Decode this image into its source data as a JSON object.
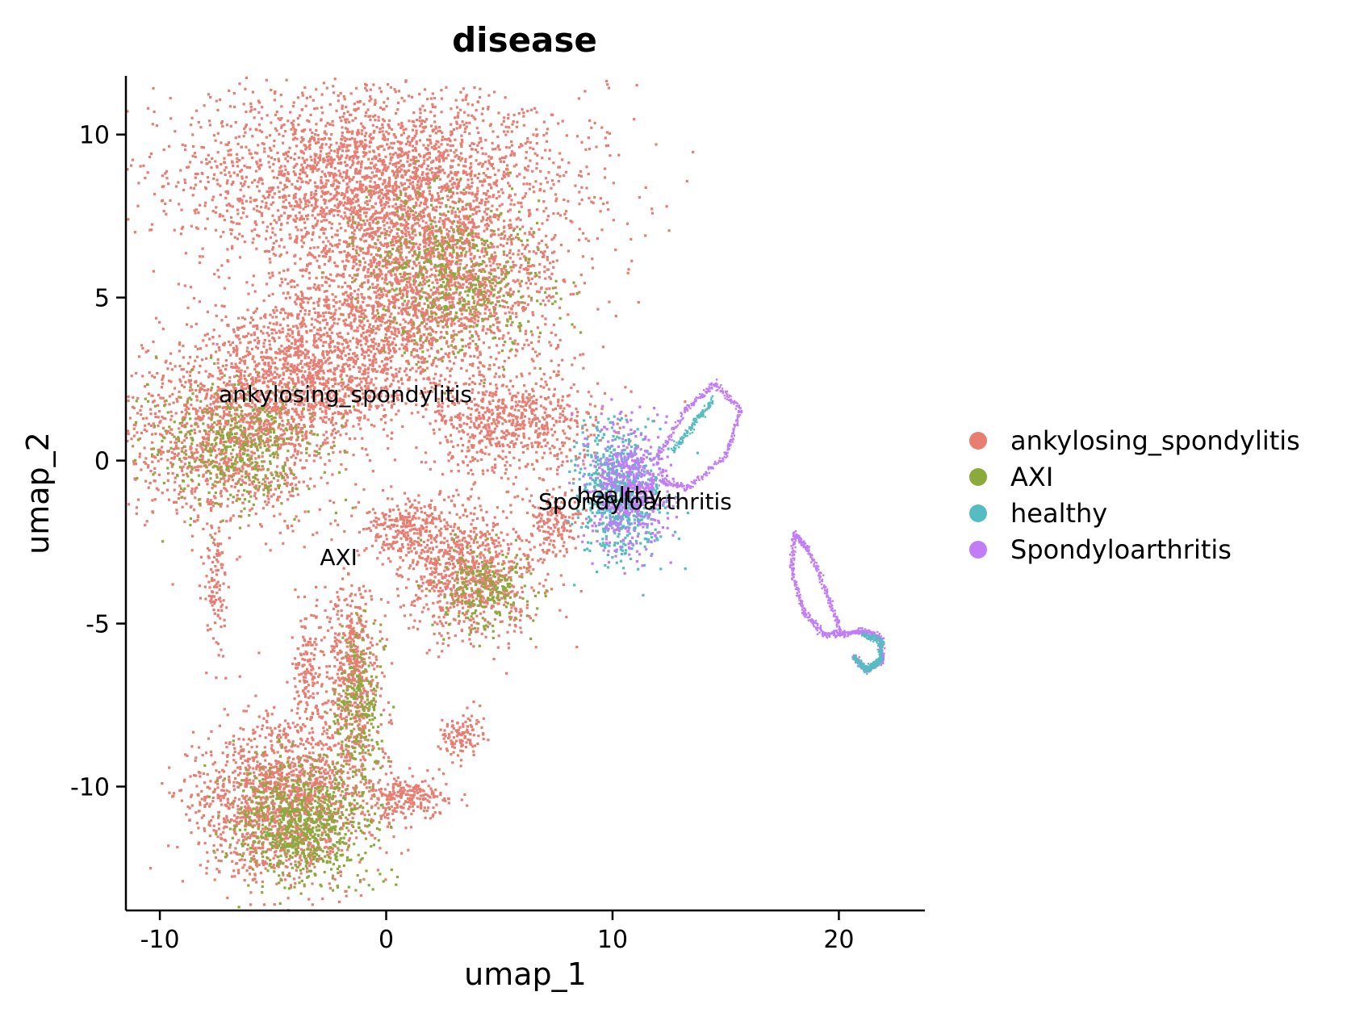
{
  "chart_data": {
    "type": "scatter",
    "title": "disease",
    "xlabel": "umap_1",
    "ylabel": "umap_2",
    "xlim": [
      -11.5,
      23.8
    ],
    "ylim": [
      -13.8,
      11.8
    ],
    "x_ticks": [
      -10,
      0,
      10,
      20
    ],
    "y_ticks": [
      -10,
      -5,
      0,
      5,
      10
    ],
    "grid": false,
    "legend_position": "right",
    "series": [
      {
        "name": "ankylosing_spondylitis",
        "color": "#E87D72"
      },
      {
        "name": "AXI",
        "color": "#8BAA3C"
      },
      {
        "name": "healthy",
        "color": "#55BCC2"
      },
      {
        "name": "Spondyloarthritis",
        "color": "#C37CF7"
      }
    ],
    "annotations": [
      {
        "text": "ankylosing_spondylitis",
        "x": -1.8,
        "y": 1.8
      },
      {
        "text": "AXI",
        "x": -2.1,
        "y": -3.2
      },
      {
        "text": "healthy",
        "x": 10.3,
        "y": -1.3
      },
      {
        "text": "Spondyloarthritis",
        "x": 11.0,
        "y": -1.5
      }
    ],
    "clusters": [
      {
        "series": 0,
        "cx": -0.8,
        "cy": 8.7,
        "sx": 4.2,
        "sy": 1.4,
        "n": 2600
      },
      {
        "series": 0,
        "cx": 2.5,
        "cy": 5.8,
        "sx": 2.6,
        "sy": 1.6,
        "n": 1700
      },
      {
        "series": 1,
        "cx": 2.8,
        "cy": 5.6,
        "sx": 2.0,
        "sy": 1.2,
        "n": 550
      },
      {
        "series": 0,
        "cx": -1.5,
        "cy": 4.0,
        "sx": 2.8,
        "sy": 1.2,
        "n": 1000
      },
      {
        "series": 0,
        "cx": -6.8,
        "cy": 1.0,
        "sx": 2.4,
        "sy": 1.4,
        "n": 1500
      },
      {
        "series": 1,
        "cx": -6.5,
        "cy": 0.4,
        "sx": 1.8,
        "sy": 1.0,
        "n": 450
      },
      {
        "series": 0,
        "cx": -3.5,
        "cy": 2.5,
        "sx": 1.8,
        "sy": 0.9,
        "n": 600
      },
      {
        "series": 0,
        "cx": 5.5,
        "cy": 1.2,
        "sx": 2.0,
        "sy": 0.8,
        "n": 700
      },
      {
        "series": 0,
        "cx": 3.6,
        "cy": -3.4,
        "sx": 1.5,
        "sy": 1.0,
        "n": 900
      },
      {
        "series": 1,
        "cx": 4.2,
        "cy": -3.9,
        "sx": 1.0,
        "sy": 0.6,
        "n": 220
      },
      {
        "series": 0,
        "cx": 0.6,
        "cy": -2.0,
        "sx": 0.9,
        "sy": 0.45,
        "n": 220
      },
      {
        "series": 0,
        "cx": -4.6,
        "cy": -10.4,
        "sx": 1.9,
        "sy": 1.2,
        "n": 1700
      },
      {
        "series": 1,
        "cx": -3.7,
        "cy": -11.1,
        "sx": 1.5,
        "sy": 0.9,
        "n": 750
      },
      {
        "series": 0,
        "cx": -1.5,
        "cy": -6.6,
        "sx": 0.55,
        "sy": 1.4,
        "n": 550
      },
      {
        "series": 1,
        "cx": -1.3,
        "cy": -7.6,
        "sx": 0.5,
        "sy": 1.2,
        "n": 230
      },
      {
        "series": 0,
        "cx": -3.5,
        "cy": -6.4,
        "sx": 0.35,
        "sy": 0.9,
        "n": 150
      },
      {
        "series": 0,
        "cx": 0.9,
        "cy": -10.3,
        "sx": 1.0,
        "sy": 0.35,
        "n": 220
      },
      {
        "series": 0,
        "cx": 3.3,
        "cy": -8.4,
        "sx": 0.5,
        "sy": 0.35,
        "n": 110
      },
      {
        "series": 0,
        "cx": -7.6,
        "cy": -3.8,
        "sx": 0.25,
        "sy": 1.0,
        "n": 110
      },
      {
        "series": 0,
        "cx": 7.4,
        "cy": -1.8,
        "sx": 0.6,
        "sy": 0.5,
        "n": 160
      },
      {
        "series": 2,
        "cx": 10.3,
        "cy": -1.0,
        "sx": 0.9,
        "sy": 1.0,
        "n": 650
      },
      {
        "series": 3,
        "cx": 10.6,
        "cy": -0.8,
        "sx": 0.9,
        "sy": 0.9,
        "n": 550
      }
    ],
    "curves": [
      {
        "series": 3,
        "points": [
          [
            12,
            0.2
          ],
          [
            13.2,
            1.6
          ],
          [
            14.5,
            2.4
          ],
          [
            15.6,
            1.6
          ],
          [
            15.0,
            0.2
          ],
          [
            13.3,
            -0.8
          ],
          [
            12,
            -0.6
          ]
        ]
      },
      {
        "series": 2,
        "points": [
          [
            12.6,
            0.3
          ],
          [
            13.6,
            1.2
          ],
          [
            14.4,
            1.9
          ]
        ]
      },
      {
        "series": 3,
        "points": [
          [
            18.0,
            -2.2
          ],
          [
            18.6,
            -2.7
          ],
          [
            19.4,
            -4.0
          ],
          [
            20.1,
            -5.3
          ],
          [
            21.0,
            -5.2
          ],
          [
            21.8,
            -5.4
          ],
          [
            21.9,
            -6.1
          ],
          [
            21.2,
            -6.4
          ],
          [
            20.6,
            -6.0
          ]
        ]
      },
      {
        "series": 2,
        "points": [
          [
            21.0,
            -5.3
          ],
          [
            21.8,
            -5.5
          ],
          [
            21.8,
            -6.1
          ],
          [
            21.2,
            -6.4
          ],
          [
            20.6,
            -6.0
          ]
        ]
      },
      {
        "series": 3,
        "points": [
          [
            18.0,
            -2.2
          ],
          [
            17.9,
            -3.4
          ],
          [
            18.4,
            -4.6
          ],
          [
            19.3,
            -5.3
          ],
          [
            20.1,
            -5.3
          ]
        ]
      }
    ]
  },
  "legend": {
    "items": [
      {
        "label": "ankylosing_spondylitis",
        "color": "#E87D72"
      },
      {
        "label": "AXI",
        "color": "#8BAA3C"
      },
      {
        "label": "healthy",
        "color": "#55BCC2"
      },
      {
        "label": "Spondyloarthritis",
        "color": "#C37CF7"
      }
    ]
  }
}
